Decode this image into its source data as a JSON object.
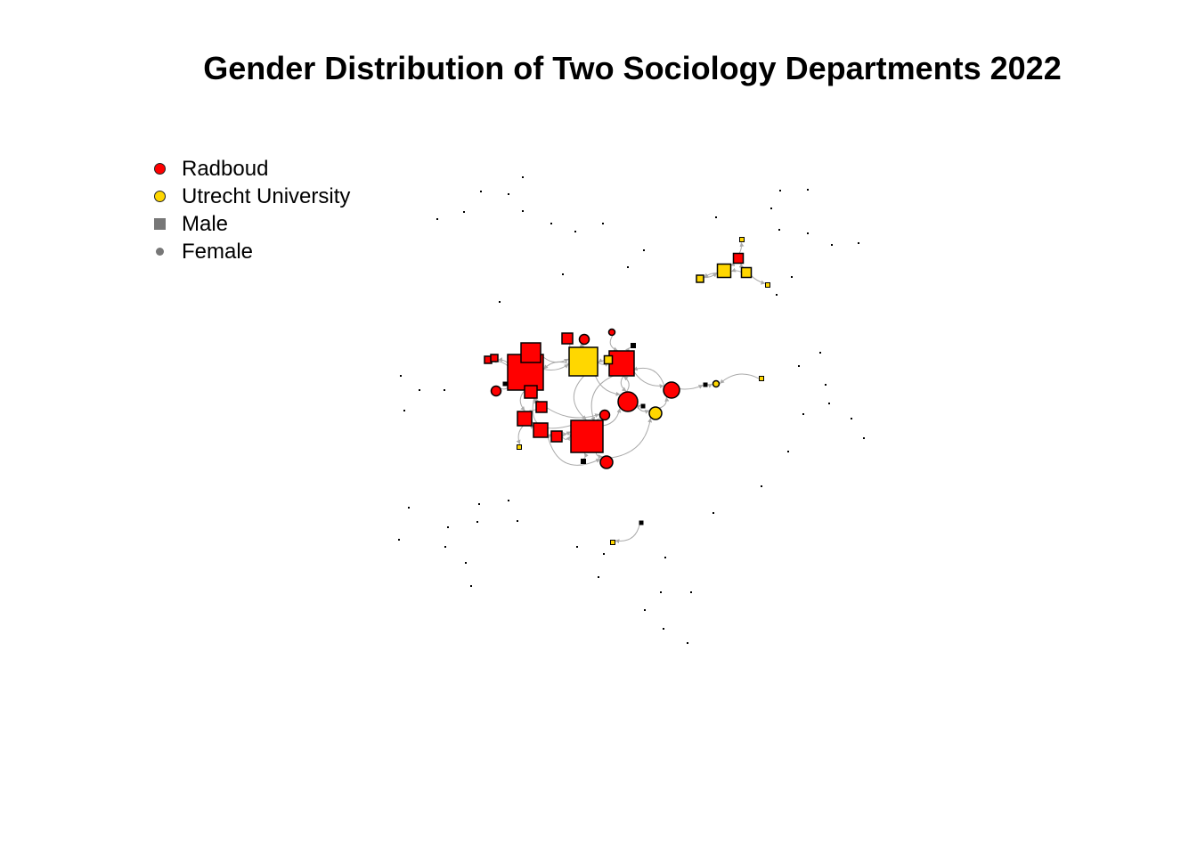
{
  "title": "Gender Distribution of Two Sociology Departments 2022",
  "legend": {
    "items": [
      {
        "label": "Radboud",
        "symbol": "circle",
        "color": "#FF0000"
      },
      {
        "label": "Utrecht University",
        "symbol": "circle",
        "color": "#FFD700"
      },
      {
        "label": "Male",
        "symbol": "square",
        "color": "#777777"
      },
      {
        "label": "Female",
        "symbol": "dot",
        "color": "#777777"
      }
    ]
  },
  "colors": {
    "radboud": "#FF0000",
    "utrecht": "#FFD700",
    "edge": "#aaaaaa",
    "border": "#000000"
  }
}
